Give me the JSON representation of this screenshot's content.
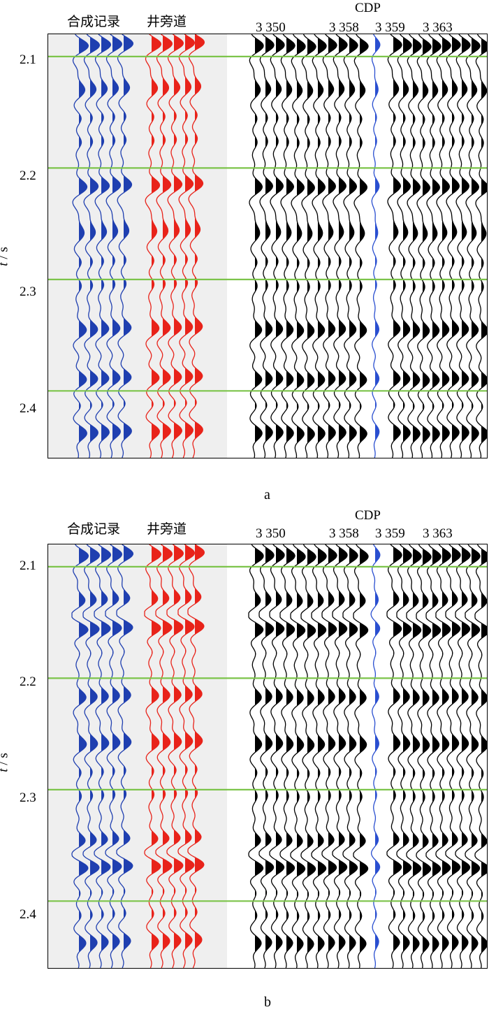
{
  "figures": [
    {
      "id": "a",
      "caption": "a",
      "header": {
        "synthetic_label": "合成记录",
        "welltrace_label": "井旁道",
        "cdp_label": "CDP",
        "cdp_ticks": [
          "3 350",
          "3 358",
          "3 359",
          "3 363"
        ]
      },
      "y_axis": {
        "label_italic": "t",
        "label_unit": " / s",
        "ticks": [
          "2.1",
          "2.2",
          "2.3",
          "2.4"
        ],
        "range": [
          2.08,
          2.46
        ]
      }
    },
    {
      "id": "b",
      "caption": "b",
      "header": {
        "synthetic_label": "合成记录",
        "welltrace_label": "井旁道",
        "cdp_label": "CDP",
        "cdp_ticks": [
          "3 350",
          "3 358",
          "3 359",
          "3 363"
        ]
      },
      "y_axis": {
        "label_italic": "t",
        "label_unit": " / s",
        "ticks": [
          "2.1",
          "2.2",
          "2.3",
          "2.4"
        ],
        "range": [
          2.08,
          2.46
        ]
      }
    }
  ],
  "colors": {
    "synthetic": "#1f3fb0",
    "welltrace": "#e8231a",
    "seismic": "#000000",
    "well_marker": "#2a4fd0",
    "horizon": "#7cc44a",
    "panel_bg": "#efefef"
  },
  "chart_data": [
    {
      "type": "seismic-section",
      "panel": "a",
      "y_ticks": [
        2.1,
        2.2,
        2.3,
        2.4
      ],
      "ylim": [
        2.08,
        2.46
      ],
      "horizons_s": [
        2.1,
        2.2,
        2.3,
        2.4
      ],
      "strong_reflections_s": [
        2.09,
        2.127,
        2.215,
        2.255,
        2.343,
        2.388,
        2.44
      ],
      "x_ticks": [
        "3 350",
        "3 358",
        "3 359",
        "3 363"
      ]
    },
    {
      "type": "seismic-section",
      "panel": "b",
      "y_ticks": [
        2.1,
        2.2,
        2.3,
        2.4
      ],
      "ylim": [
        2.08,
        2.46
      ],
      "horizons_s": [
        2.1,
        2.2,
        2.3,
        2.4
      ],
      "strong_reflections_s": [
        2.09,
        2.128,
        2.157,
        2.215,
        2.257,
        2.344,
        2.37,
        2.44
      ],
      "x_ticks": [
        "3 350",
        "3 358",
        "3 359",
        "3 363"
      ]
    }
  ]
}
